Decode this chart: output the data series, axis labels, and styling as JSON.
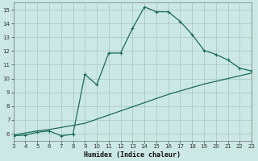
{
  "xlabel": "Humidex (Indice chaleur)",
  "background_color": "#cce8e4",
  "grid_color": "#aaccca",
  "line_color": "#1a6b5a",
  "xlim": [
    3,
    23
  ],
  "ylim": [
    5.5,
    15.5
  ],
  "xticks": [
    3,
    4,
    5,
    6,
    7,
    8,
    9,
    10,
    11,
    12,
    13,
    14,
    15,
    16,
    17,
    18,
    19,
    20,
    21,
    22,
    23
  ],
  "yticks": [
    6,
    7,
    8,
    9,
    10,
    11,
    12,
    13,
    14,
    15
  ],
  "curve1_x": [
    3,
    4,
    5,
    6,
    7,
    8,
    9,
    10,
    11,
    12,
    13,
    14,
    15,
    16,
    17,
    18,
    19,
    20,
    21,
    22,
    23
  ],
  "curve1_y": [
    5.85,
    5.9,
    6.1,
    6.2,
    5.85,
    5.95,
    10.3,
    9.55,
    11.85,
    11.85,
    13.65,
    15.2,
    14.85,
    14.85,
    14.15,
    13.2,
    12.05,
    11.75,
    11.35,
    10.75,
    10.55
  ],
  "curve2_x": [
    3,
    4,
    5,
    6,
    7,
    8,
    9,
    10,
    11,
    12,
    13,
    14,
    15,
    16,
    17,
    18,
    19,
    20,
    21,
    22,
    23
  ],
  "curve2_y": [
    5.9,
    6.05,
    6.2,
    6.3,
    6.45,
    6.6,
    6.75,
    7.05,
    7.35,
    7.65,
    7.95,
    8.25,
    8.55,
    8.85,
    9.1,
    9.35,
    9.6,
    9.8,
    10.0,
    10.2,
    10.4
  ]
}
